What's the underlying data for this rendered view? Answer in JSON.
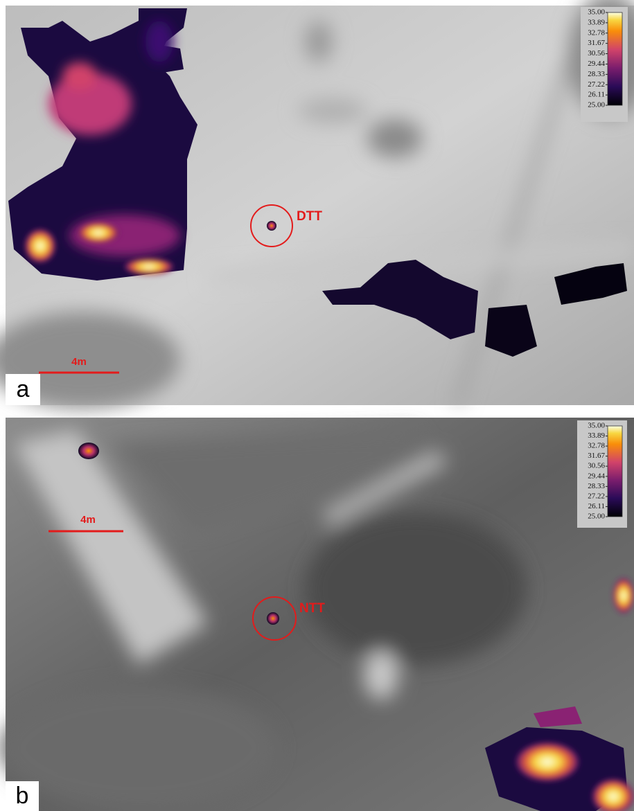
{
  "panels": [
    {
      "letter": "a",
      "target_label": "DTT",
      "scale_label": "4m",
      "colorbar": {
        "ticks": [
          {
            "value": 35,
            "label": "35.00"
          },
          {
            "value": 33.89,
            "label": "33.89"
          },
          {
            "value": 32.78,
            "label": "32.78"
          },
          {
            "value": 31.67,
            "label": "31.67"
          },
          {
            "value": 30.56,
            "label": "30.56"
          },
          {
            "value": 29.44,
            "label": "29.44"
          },
          {
            "value": 28.33,
            "label": "28.33"
          },
          {
            "value": 27.22,
            "label": "27.22"
          },
          {
            "value": 26.11,
            "label": "26.11"
          },
          {
            "value": 25,
            "label": "25.00"
          }
        ]
      }
    },
    {
      "letter": "b",
      "target_label": "NTT",
      "scale_label": "4m",
      "colorbar": {
        "ticks": [
          {
            "value": 35,
            "label": "35.00"
          },
          {
            "value": 33.89,
            "label": "33.89"
          },
          {
            "value": 32.78,
            "label": "32.78"
          },
          {
            "value": 31.67,
            "label": "31.67"
          },
          {
            "value": 30.56,
            "label": "30.56"
          },
          {
            "value": 29.44,
            "label": "29.44"
          },
          {
            "value": 28.33,
            "label": "28.33"
          },
          {
            "value": 27.22,
            "label": "27.22"
          },
          {
            "value": 26.11,
            "label": "26.11"
          },
          {
            "value": 25,
            "label": "25.00"
          }
        ]
      }
    }
  ]
}
